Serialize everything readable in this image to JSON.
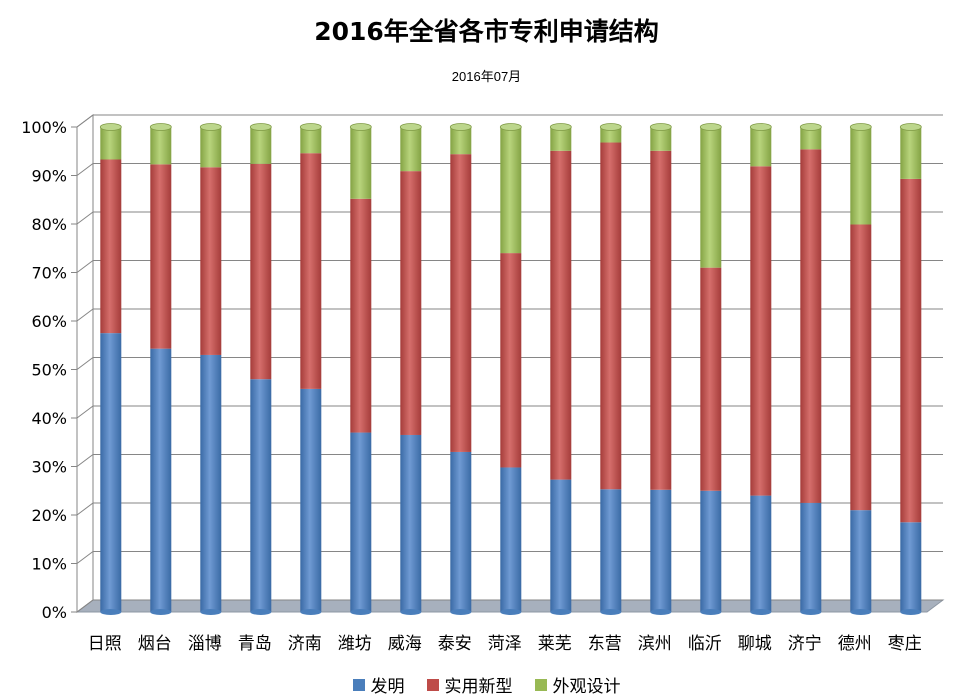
{
  "chart_data": {
    "type": "bar",
    "stacked": true,
    "normalized": true,
    "title": "2016年全省各市专利申请结构",
    "subtitle": "2016年07月",
    "categories": [
      "日照",
      "烟台",
      "淄博",
      "青岛",
      "济南",
      "潍坊",
      "威海",
      "泰安",
      "菏泽",
      "莱芜",
      "东营",
      "滨州",
      "临沂",
      "聊城",
      "济宁",
      "德州",
      "枣庄"
    ],
    "series": [
      {
        "name": "发明",
        "color": "#4a7ebb",
        "values": [
          57.5,
          54.3,
          53.0,
          48.0,
          46.0,
          37.0,
          36.5,
          33.0,
          29.8,
          27.3,
          25.3,
          25.2,
          25.0,
          24.0,
          22.5,
          21.0,
          18.5
        ]
      },
      {
        "name": "实用新型",
        "color": "#be4b48",
        "values": [
          35.8,
          38.0,
          38.7,
          44.4,
          48.6,
          48.2,
          54.4,
          61.4,
          44.2,
          67.8,
          71.5,
          69.9,
          46.0,
          67.9,
          72.9,
          58.9,
          70.8
        ]
      },
      {
        "name": "外观设计",
        "color": "#98b954",
        "values": [
          6.7,
          7.7,
          8.3,
          7.6,
          5.4,
          14.8,
          9.1,
          5.6,
          26.0,
          4.9,
          3.2,
          4.9,
          29.0,
          8.1,
          4.6,
          20.1,
          10.7
        ]
      }
    ],
    "yticks": [
      "0%",
      "10%",
      "20%",
      "30%",
      "40%",
      "50%",
      "60%",
      "70%",
      "80%",
      "90%",
      "100%"
    ],
    "ylim": [
      0,
      100
    ],
    "grid": true,
    "legend_position": "bottom"
  }
}
